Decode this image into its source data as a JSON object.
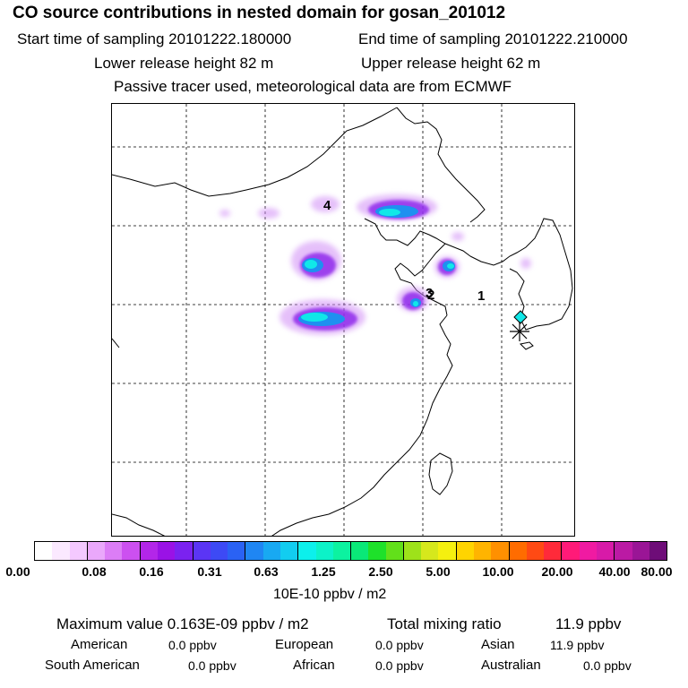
{
  "header": {
    "title": "CO  source contributions in nested domain for gosan_201012",
    "start_label": "Start time of sampling 20101222.180000",
    "end_label": "End time of sampling 20101222.210000",
    "lower_label": "Lower release height   82 m",
    "upper_label": "Upper release height   62 m",
    "tracer_note": "Passive tracer used, meteorological data are from ECMWF"
  },
  "map": {
    "point_labels": [
      "4",
      "3",
      "2",
      "1"
    ]
  },
  "colorbar": {
    "colors": [
      "#ffffff",
      "#fbe9ff",
      "#f4c9ff",
      "#eaa8fb",
      "#dc7df6",
      "#cc50f0",
      "#b326e9",
      "#9a12e6",
      "#7b22f0",
      "#5b35f5",
      "#3d4af5",
      "#2a62f4",
      "#1f86f3",
      "#18a9f2",
      "#12cdf0",
      "#0cf0ec",
      "#0cf2c8",
      "#0cf2a0",
      "#0ae878",
      "#1ee12a",
      "#62e01a",
      "#9ee21a",
      "#d6e81c",
      "#f5f00f",
      "#ffd400",
      "#ffb400",
      "#ff9000",
      "#ff6c00",
      "#ff4a14",
      "#ff2a3a",
      "#ff1a78",
      "#f01aa2",
      "#d81aa8",
      "#bb1aa4",
      "#9a1596",
      "#6e0d78"
    ],
    "ticks": [
      "0.00",
      "0.08",
      "0.16",
      "0.31",
      "0.63",
      "1.25",
      "2.50",
      "5.00",
      "10.00",
      "20.00",
      "40.00",
      "80.00"
    ],
    "unit": "10E-10 ppbv / m2"
  },
  "summary": {
    "max_label": "Maximum value  0.163E-09 ppbv / m2",
    "total_label": "Total mixing ratio",
    "total_value": "11.9 ppbv",
    "regions": [
      {
        "name": "American",
        "value": "0.0 ppbv"
      },
      {
        "name": "European",
        "value": "0.0 ppbv"
      },
      {
        "name": "Asian",
        "value": "11.9 ppbv"
      },
      {
        "name": "South American",
        "value": "0.0 ppbv"
      },
      {
        "name": "African",
        "value": "0.0 ppbv"
      },
      {
        "name": "Australian",
        "value": "0.0 ppbv"
      }
    ]
  }
}
